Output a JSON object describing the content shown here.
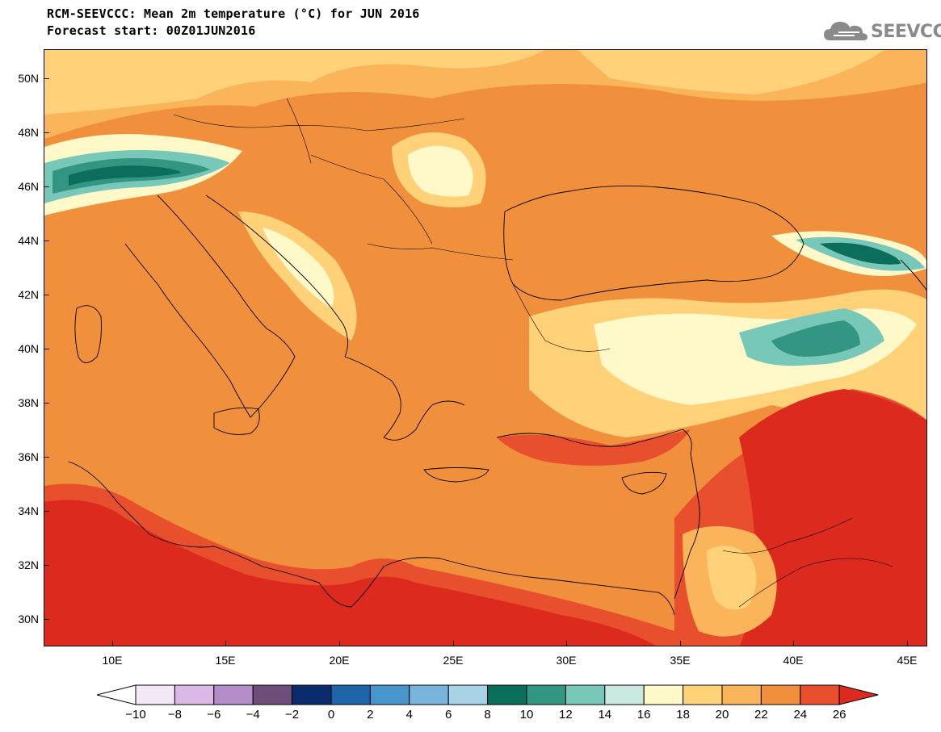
{
  "title": {
    "line1": "RCM-SEEVCCC: Mean 2m temperature (°C) for JUN 2016",
    "line2": "Forecast start: 00Z01JUN2016"
  },
  "logo": {
    "text": "SEEVCCC",
    "icon": "cloud-icon"
  },
  "map": {
    "lat_labels": [
      "50N",
      "48N",
      "46N",
      "44N",
      "42N",
      "40N",
      "38N",
      "36N",
      "34N",
      "32N",
      "30N"
    ],
    "lon_labels": [
      "10E",
      "15E",
      "20E",
      "25E",
      "30E",
      "35E",
      "40E",
      "45E"
    ]
  },
  "colorbar": {
    "labels": [
      "−10",
      "−8",
      "−6",
      "−4",
      "−2",
      "0",
      "2",
      "4",
      "6",
      "8",
      "10",
      "12",
      "14",
      "16",
      "18",
      "20",
      "22",
      "24",
      "26"
    ],
    "colors": [
      "#f2e8f6",
      "#dcb8e6",
      "#b48cc8",
      "#6e4e78",
      "#0a2b6e",
      "#1e64a8",
      "#4696cc",
      "#78b4dc",
      "#a8d2e6",
      "#0a6e5a",
      "#329682",
      "#78c8b9",
      "#c8e8e0",
      "#fff8c8",
      "#ffd27a",
      "#fab45a",
      "#f0903c",
      "#e8502d",
      "#dc2a1e"
    ],
    "low_end_color": "#ffffff",
    "high_end_color": "#dc2a1e"
  },
  "colors": {
    "sea": "#f0903c",
    "hot": "#dc2a1e",
    "warm": "#e8502d",
    "mild": "#fab45a",
    "cool": "#ffd27a",
    "cold": "#fff8c8",
    "mountain": "#0a6e5a"
  }
}
